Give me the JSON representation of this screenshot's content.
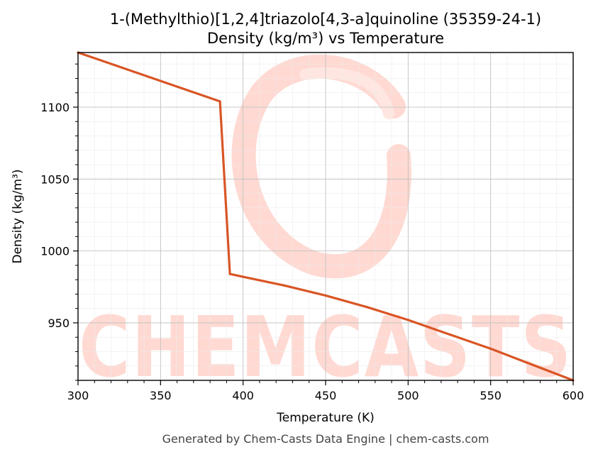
{
  "chart_data": {
    "type": "line",
    "title": "1-(Methylthio)[1,2,4]triazolo[4,3-a]quinoline (35359-24-1)",
    "subtitle": "Density (kg/m³) vs Temperature",
    "xlabel": "Temperature (K)",
    "ylabel": "Density (kg/m³)",
    "xlim": [
      300,
      600
    ],
    "ylim": [
      910,
      1138
    ],
    "x_ticks": [
      300,
      350,
      400,
      450,
      500,
      550,
      600
    ],
    "y_ticks": [
      950,
      1000,
      1050,
      1100
    ],
    "grid": true,
    "legend": "none",
    "series": [
      {
        "color": "#d95525",
        "x": [
          300,
          386,
          392,
          400,
          425,
          450,
          475,
          500,
          525,
          550,
          575,
          600
        ],
        "y": [
          1138,
          1104,
          984,
          982,
          976,
          969,
          961,
          952,
          942,
          932,
          921,
          910
        ]
      }
    ]
  },
  "watermark": {
    "text": "CHEMCASTS",
    "color": "#ffd9d2"
  },
  "footer": "Generated by Chem-Casts Data Engine | chem-casts.com"
}
